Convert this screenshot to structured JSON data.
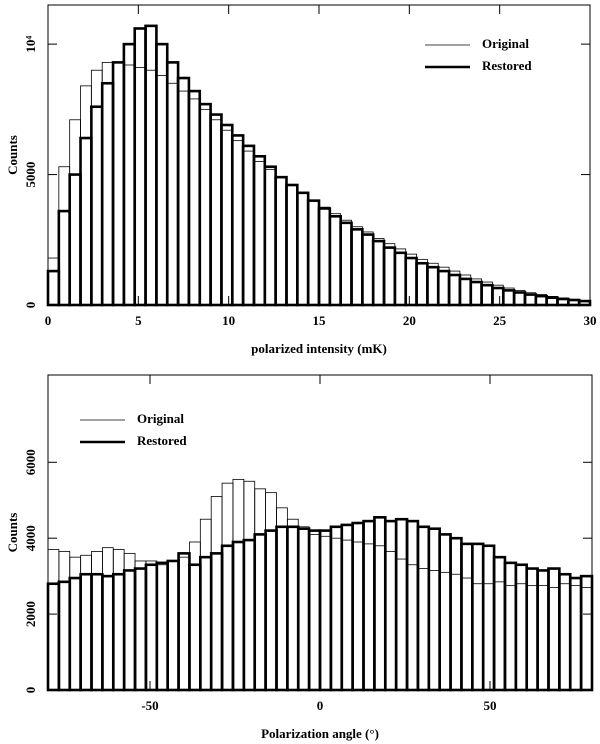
{
  "chart_data": [
    {
      "type": "histogram",
      "xlabel": "polarized intensity (mK)",
      "ylabel": "Counts",
      "legend": "upper right",
      "bins": [
        0,
        0.6,
        1.2,
        1.8,
        2.4,
        3,
        3.6,
        4.2,
        4.8,
        5.4,
        6,
        6.6,
        7.2,
        7.8,
        8.4,
        9,
        9.6,
        10.2,
        10.8,
        11.4,
        12,
        12.6,
        13.2,
        13.8,
        14.4,
        15,
        15.6,
        16.2,
        16.8,
        17.4,
        18,
        18.6,
        19.2,
        19.8,
        20.4,
        21,
        21.6,
        22.2,
        22.8,
        23.4,
        24,
        24.6,
        25.2,
        25.8,
        26.4,
        27,
        27.6,
        28.2,
        28.8,
        29.4,
        30
      ],
      "series": [
        {
          "name": "Original",
          "color": "#000000",
          "values": [
            1800,
            5300,
            7100,
            8400,
            9000,
            9300,
            9300,
            9200,
            9100,
            9000,
            8800,
            8500,
            8200,
            7900,
            7500,
            7100,
            6700,
            6300,
            5900,
            5500,
            5200,
            4900,
            4600,
            4300,
            4000,
            3750,
            3500,
            3250,
            3000,
            2800,
            2550,
            2350,
            2150,
            1950,
            1750,
            1600,
            1450,
            1300,
            1150,
            1000,
            880,
            760,
            650,
            560,
            470,
            400,
            330,
            270,
            220,
            170
          ]
        },
        {
          "name": "Restored",
          "color": "#000000",
          "values": [
            1300,
            3600,
            5000,
            6400,
            7600,
            8500,
            9300,
            10000,
            10600,
            10700,
            10000,
            9300,
            8700,
            8200,
            7700,
            7300,
            6900,
            6500,
            6100,
            5700,
            5300,
            4900,
            4600,
            4300,
            4000,
            3700,
            3400,
            3150,
            2900,
            2700,
            2450,
            2200,
            2000,
            1800,
            1600,
            1450,
            1300,
            1150,
            1000,
            880,
            760,
            650,
            560,
            480,
            400,
            340,
            280,
            230,
            190,
            150
          ]
        }
      ],
      "xlim": [
        0,
        30
      ],
      "xticks": [
        0,
        5,
        10,
        15,
        20,
        25,
        30
      ],
      "ylim": [
        0,
        11500
      ],
      "yticks": [
        0,
        5000,
        {
          "value": 10000,
          "label": "10⁴"
        }
      ]
    },
    {
      "type": "histogram",
      "xlabel": "Polarization angle (°)",
      "ylabel": "Counts",
      "legend": "upper left",
      "bins": [
        -80,
        -76.8,
        -73.6,
        -70.4,
        -67.2,
        -64,
        -60.8,
        -57.6,
        -54.4,
        -51.2,
        -48,
        -44.8,
        -41.6,
        -38.4,
        -35.2,
        -32,
        -28.8,
        -25.6,
        -22.4,
        -19.2,
        -16,
        -12.8,
        -9.6,
        -6.4,
        -3.2,
        0,
        3.2,
        6.4,
        9.6,
        12.8,
        16,
        19.2,
        22.4,
        25.6,
        28.8,
        32,
        35.2,
        38.4,
        41.6,
        44.8,
        48,
        51.2,
        54.4,
        57.6,
        60.8,
        64,
        67.2,
        70.4,
        73.6,
        76.8,
        80
      ],
      "series": [
        {
          "name": "Original",
          "color": "#000000",
          "values": [
            3700,
            3650,
            3500,
            3550,
            3650,
            3750,
            3700,
            3600,
            3400,
            3400,
            3300,
            3400,
            3500,
            3900,
            4500,
            5100,
            5450,
            5550,
            5500,
            5300,
            5200,
            4800,
            4500,
            4300,
            4100,
            4050,
            4000,
            3950,
            3900,
            3850,
            3800,
            3650,
            3450,
            3300,
            3200,
            3150,
            3100,
            3050,
            2950,
            2800,
            2800,
            2850,
            2750,
            2800,
            2750,
            2750,
            2700,
            2800,
            2750,
            2700
          ]
        },
        {
          "name": "Restored",
          "color": "#000000",
          "values": [
            2800,
            2850,
            2950,
            3050,
            3050,
            3000,
            3050,
            3150,
            3200,
            3300,
            3350,
            3400,
            3600,
            3300,
            3500,
            3600,
            3800,
            3900,
            3950,
            4100,
            4200,
            4300,
            4300,
            4250,
            4200,
            4200,
            4300,
            4350,
            4400,
            4450,
            4550,
            4450,
            4500,
            4450,
            4300,
            4250,
            4100,
            4000,
            3850,
            3850,
            3800,
            3500,
            3350,
            3300,
            3200,
            3150,
            3200,
            3050,
            2950,
            3000
          ]
        }
      ],
      "xlim": [
        -80,
        80
      ],
      "xticks": [
        -50,
        0,
        50
      ],
      "ylim": [
        0,
        8300
      ],
      "yticks": [
        0,
        2000,
        4000,
        6000
      ]
    }
  ]
}
